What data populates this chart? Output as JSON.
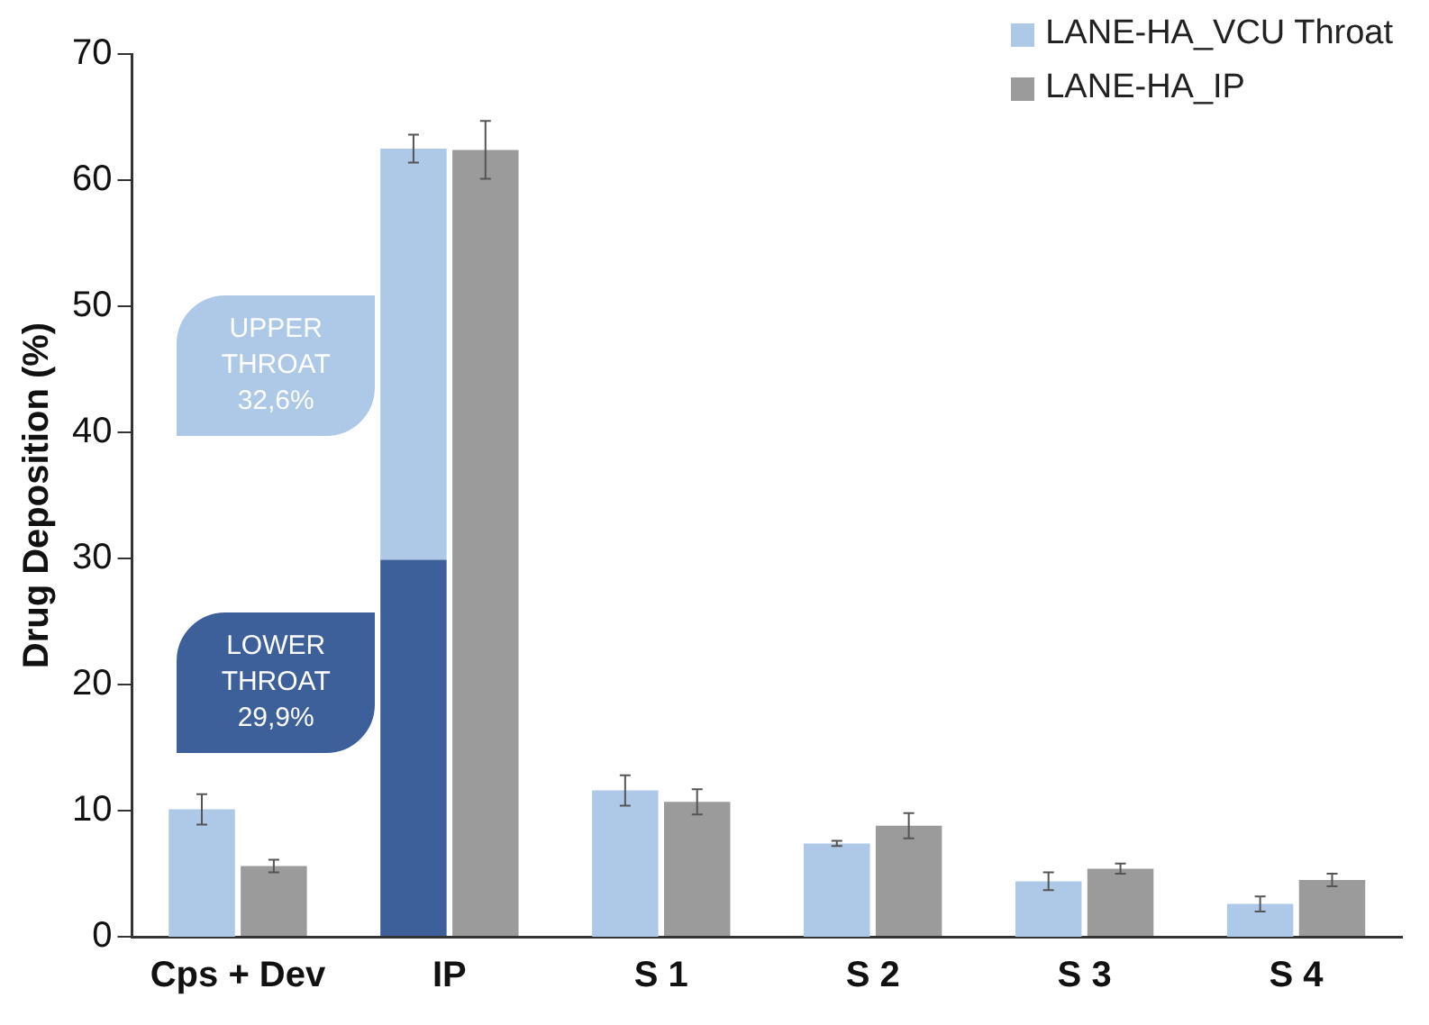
{
  "chart_data": {
    "type": "bar",
    "ylabel": "Drug Deposition (%)",
    "categories": [
      "Cps + Dev",
      "IP",
      "S 1",
      "S 2",
      "S 3",
      "S 4"
    ],
    "legend": "top right",
    "grid": false,
    "ylim": [
      0,
      70
    ],
    "yticks": [
      0,
      10,
      20,
      30,
      40,
      50,
      60,
      70
    ],
    "series": [
      {
        "color": "#3d5f9a",
        "values": [
          null,
          29.9,
          null,
          null,
          null,
          null
        ]
      },
      {
        "name": "LANE-HA_VCU Throat",
        "color": "#aec8e8",
        "base": [
          0,
          29.9,
          0,
          0,
          0,
          0
        ],
        "values": [
          10.1,
          32.6,
          11.6,
          7.4,
          4.4,
          2.6
        ],
        "errors": [
          1.2,
          1.1,
          1.2,
          0.2,
          0.7,
          0.6
        ]
      },
      {
        "name": "LANE-HA_IP",
        "color": "#9b9b9b",
        "values": [
          5.6,
          62.4,
          10.7,
          8.8,
          5.4,
          4.5
        ],
        "errors": [
          0.5,
          2.3,
          1.0,
          1.0,
          0.4,
          0.5
        ]
      }
    ],
    "annotations": [
      "UPPER\nTHROAT\n32,6%",
      "LOWER\nTHROAT\n29,9%"
    ]
  }
}
